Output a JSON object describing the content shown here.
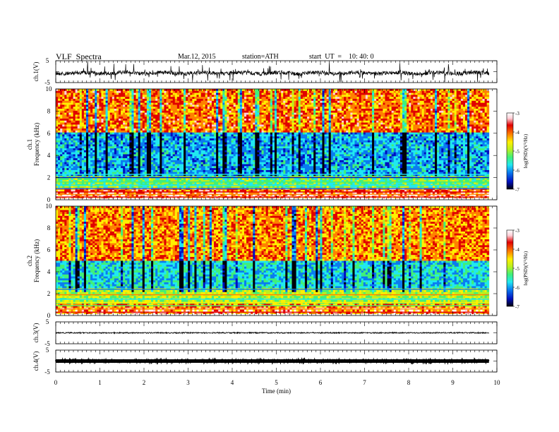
{
  "header": {
    "title": "VLF  Spectra",
    "date": "Mar.12, 2015",
    "station": "station=ATH",
    "start": "start  UT  =    10: 40: 0"
  },
  "colors": {
    "colormap": [
      "#00000a",
      "#0010c0",
      "#0a7cf0",
      "#20e8f0",
      "#40f078",
      "#b8f020",
      "#fff000",
      "#ff8000",
      "#e00000",
      "#ffd0d8",
      "#ffffff"
    ],
    "trace": "#000000",
    "background": "#ffffff"
  },
  "chart_data": [
    {
      "type": "line",
      "name": "ch1-waveform",
      "ylabel": "ch.1(V)",
      "ylim": [
        -5,
        5
      ],
      "yticks": [
        "5",
        "-5"
      ],
      "xlim": [
        0,
        10
      ],
      "description_level": -0.3,
      "x_extent": [
        0,
        9.82
      ]
    },
    {
      "type": "heatmap",
      "name": "ch1-spectrogram",
      "ylabel_channel": "ch.1",
      "ylabel": "Frequency (kHz)",
      "ylim": [
        0,
        10
      ],
      "yticks": [
        "0",
        "2",
        "4",
        "6",
        "8",
        "10"
      ],
      "xlim": [
        0,
        10
      ],
      "x_extent": [
        0,
        9.82
      ],
      "colorbar": {
        "label": "log(PSD)(V²/Hz)",
        "range": [
          -7,
          -3
        ],
        "ticks": [
          "-3",
          "-4",
          "-5",
          "-6",
          "-7"
        ]
      },
      "bands": [
        {
          "f": [
            6.0,
            10.0
          ],
          "level": -4.1
        },
        {
          "f": [
            2.2,
            6.0
          ],
          "level": -6.0
        },
        {
          "f": [
            1.0,
            2.2
          ],
          "level": -5.3
        },
        {
          "f": [
            0.0,
            1.0
          ],
          "level": -4.0
        }
      ]
    },
    {
      "type": "heatmap",
      "name": "ch2-spectrogram",
      "ylabel_channel": "ch.2",
      "ylabel": "Frequency (kHz)",
      "ylim": [
        0,
        10
      ],
      "yticks": [
        "0",
        "2",
        "4",
        "6",
        "8",
        "10"
      ],
      "xlim": [
        0,
        10
      ],
      "x_extent": [
        0,
        9.82
      ],
      "colorbar": {
        "label": "log(PSD)(V²/Hz)",
        "range": [
          -7,
          -3
        ],
        "ticks": [
          "-3",
          "-4",
          "-5",
          "-6",
          "-7"
        ]
      },
      "bands": [
        {
          "f": [
            5.0,
            10.0
          ],
          "level": -4.2
        },
        {
          "f": [
            2.5,
            5.0
          ],
          "level": -5.8
        },
        {
          "f": [
            1.0,
            2.5
          ],
          "level": -5.0
        },
        {
          "f": [
            0.0,
            1.0
          ],
          "level": -4.2
        }
      ]
    },
    {
      "type": "line",
      "name": "ch3-waveform",
      "ylabel": "ch.3(V)",
      "ylim": [
        -5,
        5
      ],
      "yticks": [
        "5",
        "-5"
      ],
      "xlim": [
        0,
        10
      ],
      "level": 0,
      "x_extent": [
        0,
        9.82
      ]
    },
    {
      "type": "line",
      "name": "ch4-waveform",
      "ylabel": "ch.4(V)",
      "ylim": [
        -5,
        5
      ],
      "yticks": [
        "5",
        "-5"
      ],
      "xlim": [
        0,
        10
      ],
      "level": 0,
      "x_extent": [
        0,
        9.82
      ],
      "xlabel": "Time  (min)",
      "xticks": [
        "0",
        "1",
        "2",
        "3",
        "4",
        "5",
        "6",
        "7",
        "8",
        "9",
        "10"
      ]
    }
  ]
}
